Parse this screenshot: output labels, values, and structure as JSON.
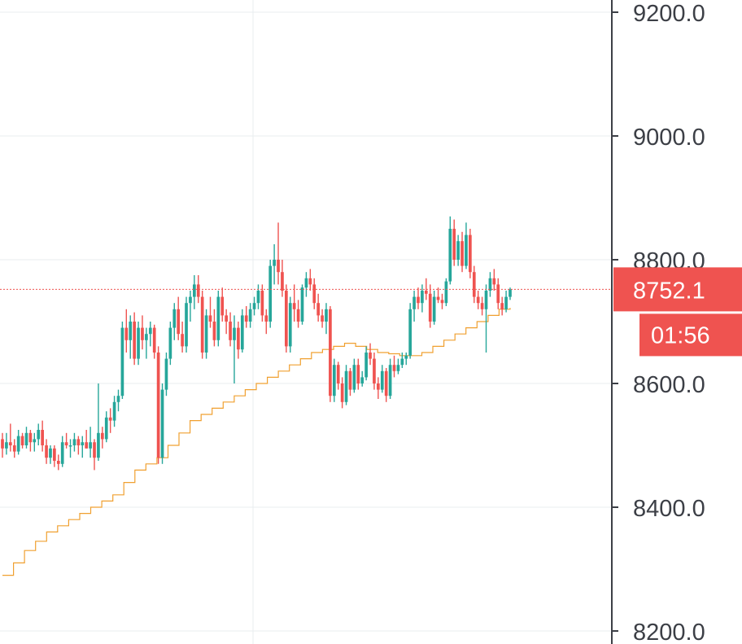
{
  "chart_data": {
    "type": "candlestick",
    "title": "",
    "xlabel": "",
    "ylabel": "",
    "ylim": [
      8200,
      9220
    ],
    "y_ticks": [
      {
        "value": 9200,
        "label": "9200.0"
      },
      {
        "value": 9000,
        "label": "9000.0"
      },
      {
        "value": 8800,
        "label": "8800.0"
      },
      {
        "value": 8600,
        "label": "8600.0"
      },
      {
        "value": 8400,
        "label": "8400.0"
      },
      {
        "value": 8200,
        "label": "8200.0"
      }
    ],
    "grid": true,
    "colors": {
      "up": "#26a69a",
      "down": "#ef5350",
      "ma": "#f0a030",
      "axis": "#3c3f46",
      "grid": "#e8ecef",
      "badge": "#ef5350"
    },
    "current_price": {
      "value": 8752.1,
      "label": "8752.1"
    },
    "countdown": "01:56",
    "ohlc": [
      [
        8510,
        8520,
        8480,
        8495
      ],
      [
        8495,
        8520,
        8485,
        8505
      ],
      [
        8505,
        8535,
        8490,
        8500
      ],
      [
        8500,
        8510,
        8480,
        8490
      ],
      [
        8490,
        8525,
        8485,
        8515
      ],
      [
        8515,
        8520,
        8495,
        8500
      ],
      [
        8500,
        8530,
        8495,
        8520
      ],
      [
        8520,
        8525,
        8490,
        8505
      ],
      [
        8505,
        8520,
        8490,
        8510
      ],
      [
        8510,
        8535,
        8500,
        8525
      ],
      [
        8525,
        8540,
        8490,
        8500
      ],
      [
        8500,
        8510,
        8470,
        8480
      ],
      [
        8480,
        8500,
        8470,
        8495
      ],
      [
        8495,
        8500,
        8465,
        8475
      ],
      [
        8475,
        8485,
        8460,
        8470
      ],
      [
        8470,
        8515,
        8465,
        8505
      ],
      [
        8505,
        8520,
        8495,
        8500
      ],
      [
        8500,
        8510,
        8480,
        8500
      ],
      [
        8500,
        8520,
        8490,
        8510
      ],
      [
        8510,
        8515,
        8485,
        8500
      ],
      [
        8500,
        8515,
        8480,
        8505
      ],
      [
        8505,
        8525,
        8495,
        8495
      ],
      [
        8495,
        8530,
        8480,
        8505
      ],
      [
        8505,
        8510,
        8460,
        8480
      ],
      [
        8480,
        8600,
        8475,
        8520
      ],
      [
        8520,
        8530,
        8495,
        8510
      ],
      [
        8510,
        8555,
        8505,
        8545
      ],
      [
        8545,
        8560,
        8520,
        8540
      ],
      [
        8540,
        8580,
        8530,
        8570
      ],
      [
        8570,
        8590,
        8555,
        8580
      ],
      [
        8580,
        8700,
        8575,
        8690
      ],
      [
        8690,
        8720,
        8650,
        8670
      ],
      [
        8670,
        8710,
        8640,
        8700
      ],
      [
        8700,
        8715,
        8630,
        8640
      ],
      [
        8640,
        8700,
        8630,
        8690
      ],
      [
        8690,
        8710,
        8655,
        8670
      ],
      [
        8670,
        8690,
        8640,
        8680
      ],
      [
        8680,
        8700,
        8660,
        8690
      ],
      [
        8690,
        8695,
        8640,
        8650
      ],
      [
        8650,
        8660,
        8470,
        8480
      ],
      [
        8480,
        8600,
        8470,
        8590
      ],
      [
        8590,
        8650,
        8580,
        8640
      ],
      [
        8640,
        8700,
        8630,
        8690
      ],
      [
        8690,
        8730,
        8670,
        8720
      ],
      [
        8720,
        8740,
        8670,
        8680
      ],
      [
        8680,
        8700,
        8650,
        8660
      ],
      [
        8660,
        8740,
        8650,
        8730
      ],
      [
        8730,
        8750,
        8700,
        8740
      ],
      [
        8740,
        8775,
        8720,
        8760
      ],
      [
        8760,
        8775,
        8730,
        8740
      ],
      [
        8740,
        8750,
        8640,
        8650
      ],
      [
        8650,
        8720,
        8640,
        8710
      ],
      [
        8710,
        8740,
        8690,
        8700
      ],
      [
        8700,
        8720,
        8660,
        8670
      ],
      [
        8670,
        8750,
        8660,
        8740
      ],
      [
        8740,
        8755,
        8700,
        8710
      ],
      [
        8710,
        8720,
        8680,
        8700
      ],
      [
        8700,
        8715,
        8660,
        8670
      ],
      [
        8670,
        8710,
        8600,
        8690
      ],
      [
        8690,
        8700,
        8640,
        8655
      ],
      [
        8655,
        8720,
        8650,
        8710
      ],
      [
        8710,
        8725,
        8690,
        8700
      ],
      [
        8700,
        8730,
        8690,
        8720
      ],
      [
        8720,
        8740,
        8710,
        8730
      ],
      [
        8730,
        8760,
        8720,
        8750
      ],
      [
        8750,
        8760,
        8700,
        8710
      ],
      [
        8710,
        8720,
        8680,
        8700
      ],
      [
        8700,
        8800,
        8690,
        8790
      ],
      [
        8790,
        8825,
        8760,
        8800
      ],
      [
        8800,
        8860,
        8760,
        8780
      ],
      [
        8780,
        8800,
        8740,
        8750
      ],
      [
        8750,
        8760,
        8650,
        8660
      ],
      [
        8660,
        8740,
        8650,
        8730
      ],
      [
        8730,
        8760,
        8700,
        8720
      ],
      [
        8720,
        8735,
        8690,
        8700
      ],
      [
        8700,
        8760,
        8695,
        8755
      ],
      [
        8755,
        8780,
        8740,
        8770
      ],
      [
        8770,
        8785,
        8750,
        8760
      ],
      [
        8760,
        8770,
        8720,
        8730
      ],
      [
        8730,
        8745,
        8700,
        8710
      ],
      [
        8710,
        8720,
        8690,
        8700
      ],
      [
        8700,
        8730,
        8680,
        8720
      ],
      [
        8720,
        8725,
        8570,
        8580
      ],
      [
        8580,
        8640,
        8570,
        8630
      ],
      [
        8630,
        8635,
        8590,
        8600
      ],
      [
        8600,
        8610,
        8560,
        8570
      ],
      [
        8570,
        8630,
        8565,
        8620
      ],
      [
        8620,
        8625,
        8580,
        8590
      ],
      [
        8590,
        8640,
        8585,
        8630
      ],
      [
        8630,
        8640,
        8590,
        8600
      ],
      [
        8600,
        8620,
        8595,
        8610
      ],
      [
        8610,
        8660,
        8605,
        8650
      ],
      [
        8650,
        8665,
        8630,
        8640
      ],
      [
        8640,
        8650,
        8590,
        8600
      ],
      [
        8600,
        8610,
        8575,
        8590
      ],
      [
        8590,
        8630,
        8585,
        8620
      ],
      [
        8620,
        8625,
        8570,
        8580
      ],
      [
        8580,
        8640,
        8575,
        8630
      ],
      [
        8630,
        8645,
        8610,
        8620
      ],
      [
        8620,
        8640,
        8615,
        8630
      ],
      [
        8630,
        8650,
        8625,
        8640
      ],
      [
        8640,
        8650,
        8630,
        8645
      ],
      [
        8645,
        8730,
        8640,
        8720
      ],
      [
        8720,
        8750,
        8700,
        8740
      ],
      [
        8740,
        8755,
        8720,
        8730
      ],
      [
        8730,
        8760,
        8715,
        8750
      ],
      [
        8750,
        8770,
        8735,
        8745
      ],
      [
        8745,
        8760,
        8690,
        8700
      ],
      [
        8700,
        8750,
        8695,
        8740
      ],
      [
        8740,
        8755,
        8730,
        8735
      ],
      [
        8735,
        8745,
        8720,
        8730
      ],
      [
        8730,
        8770,
        8725,
        8765
      ],
      [
        8765,
        8870,
        8760,
        8850
      ],
      [
        8850,
        8865,
        8790,
        8800
      ],
      [
        8800,
        8840,
        8790,
        8830
      ],
      [
        8830,
        8845,
        8780,
        8790
      ],
      [
        8790,
        8860,
        8785,
        8840
      ],
      [
        8840,
        8850,
        8770,
        8780
      ],
      [
        8780,
        8790,
        8730,
        8740
      ],
      [
        8740,
        8750,
        8720,
        8730
      ],
      [
        8730,
        8740,
        8710,
        8720
      ],
      [
        8720,
        8760,
        8650,
        8750
      ],
      [
        8750,
        8780,
        8740,
        8770
      ],
      [
        8770,
        8785,
        8750,
        8760
      ],
      [
        8760,
        8770,
        8720,
        8730
      ],
      [
        8730,
        8740,
        8710,
        8720
      ],
      [
        8720,
        8750,
        8715,
        8740
      ],
      [
        8740,
        8755,
        8735,
        8752.1
      ]
    ],
    "moving_average": [
      8290,
      8310,
      8330,
      8345,
      8360,
      8370,
      8380,
      8390,
      8400,
      8410,
      8420,
      8440,
      8460,
      8470,
      8480,
      8500,
      8520,
      8540,
      8550,
      8560,
      8570,
      8580,
      8590,
      8600,
      8610,
      8620,
      8630,
      8640,
      8650,
      8655,
      8660,
      8665,
      8660,
      8655,
      8650,
      8648,
      8645,
      8645,
      8650,
      8660,
      8670,
      8680,
      8690,
      8700,
      8710,
      8720,
      8722
    ]
  }
}
